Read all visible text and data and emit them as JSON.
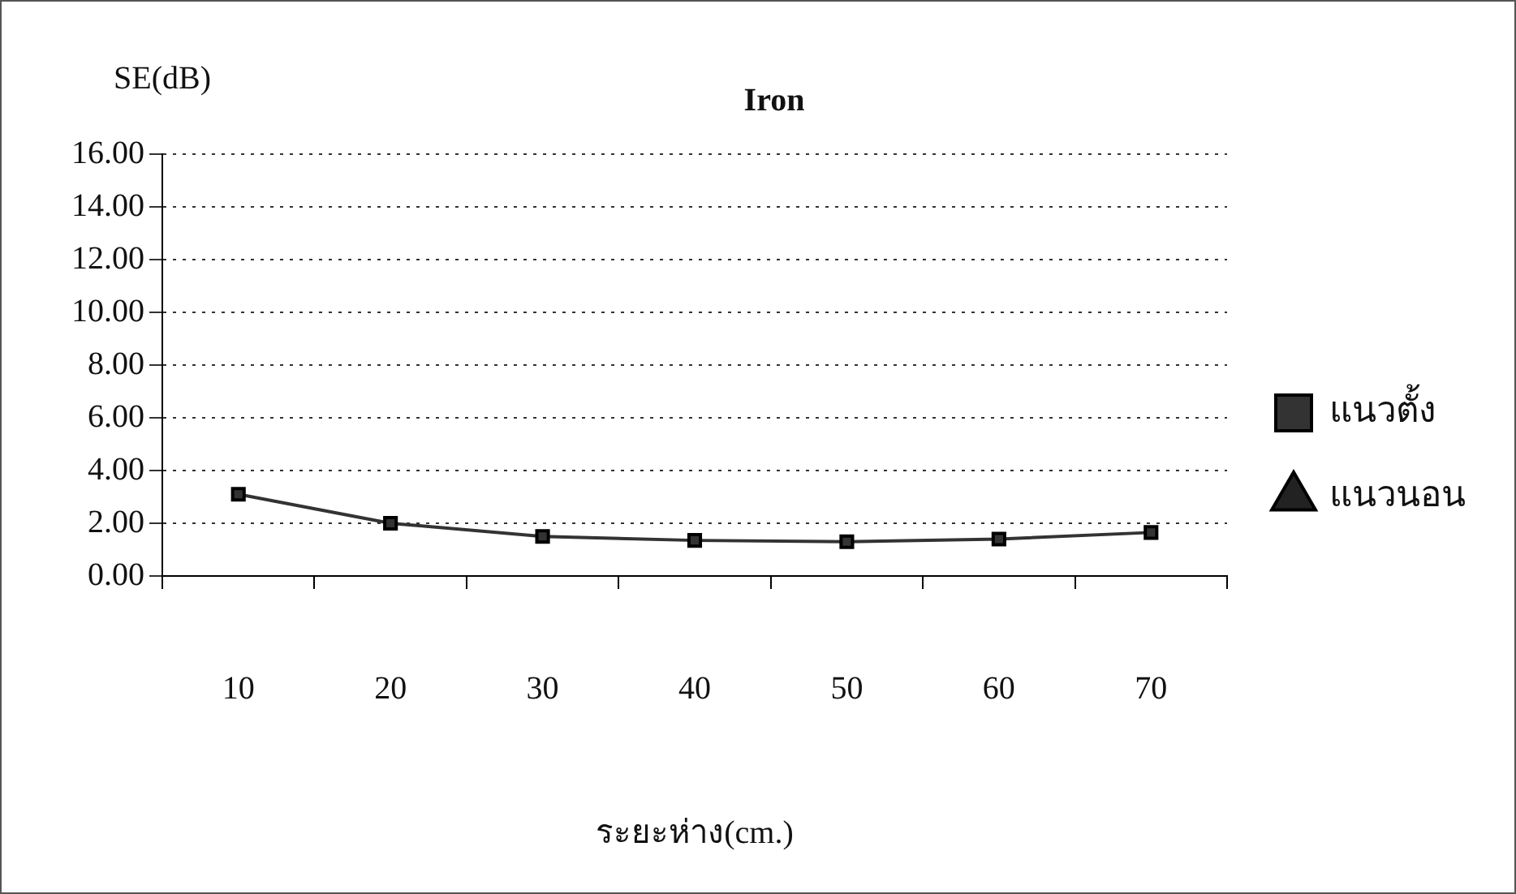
{
  "chart_data": {
    "type": "line",
    "title": "Iron",
    "ylabel": "SE(dB)",
    "xlabel": "ระยะห่าง(cm.)",
    "categories": [
      "10",
      "20",
      "30",
      "40",
      "50",
      "60",
      "70"
    ],
    "series": [
      {
        "name": "แนวตั้ง",
        "color": "#333333",
        "marker": "square",
        "values": [
          3.1,
          2.0,
          1.5,
          1.35,
          1.3,
          1.4,
          1.65
        ]
      },
      {
        "name": "แนวนอน",
        "color": "#222222",
        "marker": "triangle",
        "values": [
          null,
          null,
          null,
          null,
          null,
          null,
          null
        ]
      }
    ],
    "ylim": [
      0,
      16
    ],
    "yticks": [
      {
        "value": 0,
        "label": "0.00"
      },
      {
        "value": 2,
        "label": "2.00"
      },
      {
        "value": 4,
        "label": "4.00"
      },
      {
        "value": 6,
        "label": "6.00"
      },
      {
        "value": 8,
        "label": "8.00"
      },
      {
        "value": 10,
        "label": "10.00"
      },
      {
        "value": 12,
        "label": "12.00"
      },
      {
        "value": 14,
        "label": "14.00"
      },
      {
        "value": 16,
        "label": "16.00"
      }
    ],
    "grid": "y",
    "legend": "right",
    "line_style": "solid"
  }
}
